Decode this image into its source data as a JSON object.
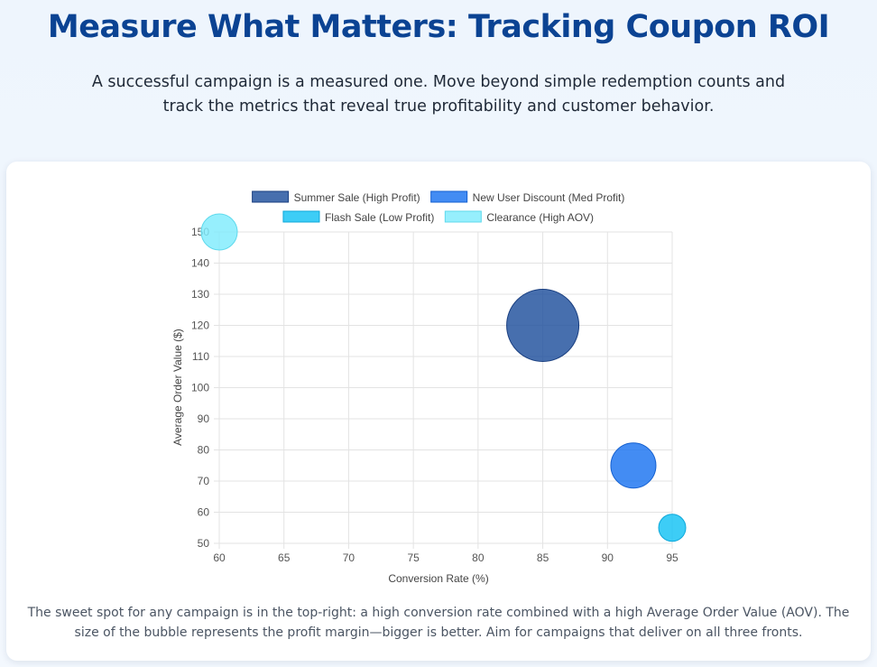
{
  "header": {
    "title": "Measure What Matters: Tracking Coupon ROI",
    "intro": "A successful campaign is a measured one. Move beyond simple redemption counts and track the metrics that reveal true profitability and customer behavior."
  },
  "caption": "The sweet spot for any campaign is in the top-right: a high conversion rate combined with a high Average Order Value (AOV). The size of the bubble represents the profit margin—bigger is better. Aim for campaigns that deliver on all three fronts.",
  "chart_data": {
    "type": "scatter",
    "subtype": "bubble",
    "xlabel": "Conversion Rate (%)",
    "ylabel": "Average Order Value ($)",
    "xlim": [
      60,
      95
    ],
    "ylim": [
      50,
      150
    ],
    "xticks": [
      60,
      65,
      70,
      75,
      80,
      85,
      90,
      95
    ],
    "yticks": [
      50,
      60,
      70,
      80,
      90,
      100,
      110,
      120,
      130,
      140,
      150
    ],
    "grid": true,
    "legend_position": "top",
    "series": [
      {
        "name": "Summer Sale (High Profit)",
        "color": "#1e4f9c",
        "border": "#1a3f80",
        "points": [
          {
            "x": 85,
            "y": 120,
            "r": 40
          }
        ]
      },
      {
        "name": "New User Discount (Med Profit)",
        "color": "#1a73f0",
        "border": "#1560d0",
        "points": [
          {
            "x": 92,
            "y": 75,
            "r": 25
          }
        ]
      },
      {
        "name": "Flash Sale (Low Profit)",
        "color": "#12c2f4",
        "border": "#0ea8da",
        "points": [
          {
            "x": 95,
            "y": 55,
            "r": 15
          }
        ]
      },
      {
        "name": "Clearance (High AOV)",
        "color": "#7fecfc",
        "border": "#5fd9ec",
        "points": [
          {
            "x": 60,
            "y": 150,
            "r": 20
          }
        ]
      }
    ]
  }
}
